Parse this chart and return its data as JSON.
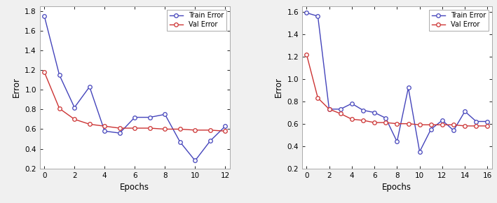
{
  "left": {
    "train_x": [
      0,
      1,
      2,
      3,
      4,
      5,
      6,
      7,
      8,
      9,
      10,
      11,
      12
    ],
    "train_y": [
      1.75,
      1.15,
      0.82,
      1.03,
      0.58,
      0.56,
      0.72,
      0.72,
      0.75,
      0.47,
      0.28,
      0.48,
      0.63
    ],
    "val_x": [
      0,
      1,
      2,
      3,
      4,
      5,
      6,
      7,
      8,
      9,
      10,
      11,
      12
    ],
    "val_y": [
      1.18,
      0.81,
      0.7,
      0.65,
      0.63,
      0.61,
      0.61,
      0.61,
      0.6,
      0.6,
      0.59,
      0.59,
      0.58
    ],
    "xlim": [
      -0.3,
      12.3
    ],
    "ylim": [
      0.2,
      1.85
    ],
    "xticks": [
      0,
      2,
      4,
      6,
      8,
      10,
      12
    ],
    "yticks": [
      0.2,
      0.4,
      0.6,
      0.8,
      1.0,
      1.2,
      1.4,
      1.6,
      1.8
    ],
    "xlabel": "Epochs",
    "ylabel": "Error"
  },
  "right": {
    "train_x": [
      0,
      1,
      2,
      3,
      4,
      5,
      6,
      7,
      8,
      9,
      10,
      11,
      12,
      13,
      14,
      15,
      16
    ],
    "train_y": [
      1.59,
      1.56,
      0.73,
      0.73,
      0.78,
      0.72,
      0.7,
      0.65,
      0.44,
      0.92,
      0.35,
      0.55,
      0.63,
      0.54,
      0.71,
      0.62,
      0.62
    ],
    "val_x": [
      0,
      1,
      2,
      3,
      4,
      5,
      6,
      7,
      8,
      9,
      10,
      11,
      12,
      13,
      14,
      15,
      16
    ],
    "val_y": [
      1.22,
      0.83,
      0.73,
      0.69,
      0.64,
      0.63,
      0.61,
      0.61,
      0.6,
      0.6,
      0.59,
      0.59,
      0.59,
      0.59,
      0.58,
      0.58,
      0.58
    ],
    "xlim": [
      -0.4,
      16.4
    ],
    "ylim": [
      0.2,
      1.65
    ],
    "xticks": [
      0,
      2,
      4,
      6,
      8,
      10,
      12,
      14,
      16
    ],
    "yticks": [
      0.2,
      0.4,
      0.6,
      0.8,
      1.0,
      1.2,
      1.4,
      1.6
    ],
    "xlabel": "Epochs",
    "ylabel": "Error"
  },
  "train_color": "#4444bb",
  "val_color": "#cc3333",
  "marker": "o",
  "markersize": 4,
  "linewidth": 1.0,
  "legend_train": "Train Error",
  "legend_val": "Val Error",
  "background_color": "#ffffff",
  "fig_background": "#f0f0f0"
}
